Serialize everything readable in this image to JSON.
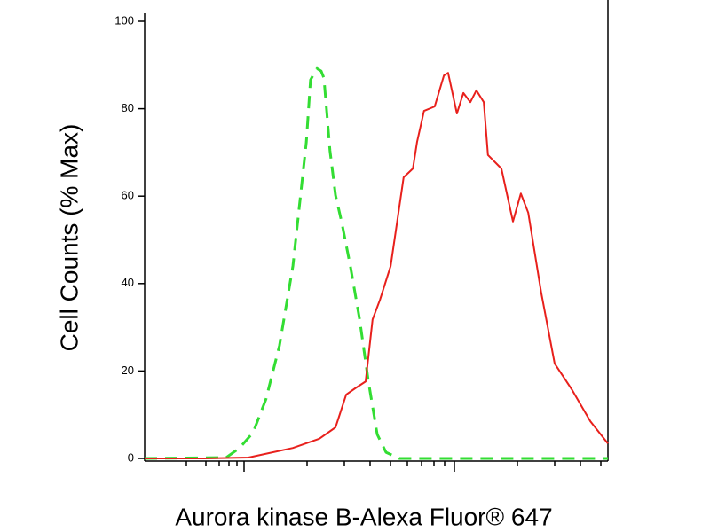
{
  "chart_data": {
    "type": "line",
    "xlabel": "Aurora kinase B-Alexa Fluor® 647",
    "ylabel": "Cell Counts (% Max)",
    "xlim": [
      0,
      100
    ],
    "ylim": [
      0,
      100
    ],
    "yticks": [
      0,
      20,
      40,
      60,
      80,
      100
    ],
    "series": [
      {
        "color": "#33dd33",
        "dashed": true,
        "x": [
          0,
          17.6,
          20.5,
          23.4,
          26.2,
          29.1,
          32.0,
          34.9,
          35.8,
          37.2,
          38.1,
          38.7,
          40.0,
          41.2,
          42.5,
          44.4,
          46.4,
          48.3,
          50.2,
          52.1,
          55.0,
          100
        ],
        "values": [
          0,
          0.2,
          2.4,
          5.9,
          13.6,
          25.8,
          44.0,
          72.4,
          86.6,
          89.2,
          88.6,
          87.0,
          70.4,
          60.2,
          54.2,
          44.0,
          31.8,
          17.6,
          5.5,
          1.4,
          0,
          0
        ]
      },
      {
        "color": "#e8201c",
        "dashed": false,
        "x": [
          0,
          12.8,
          22.4,
          32.0,
          37.7,
          41.2,
          43.5,
          45.4,
          47.7,
          49.2,
          50.8,
          53.1,
          55.9,
          57.9,
          58.8,
          60.3,
          62.6,
          64.6,
          65.5,
          67.4,
          68.8,
          70.3,
          71.6,
          73.2,
          74.1,
          77.0,
          79.5,
          81.2,
          82.8,
          85.6,
          88.5,
          92.3,
          96.2,
          100
        ],
        "values": [
          0,
          0,
          0.2,
          2.4,
          4.5,
          7.1,
          14.6,
          16.0,
          17.6,
          31.8,
          36.3,
          44.0,
          64.3,
          66.3,
          72.4,
          79.5,
          80.5,
          87.6,
          88.2,
          78.9,
          83.6,
          81.5,
          84.2,
          81.5,
          69.4,
          66.3,
          54.2,
          60.6,
          56.2,
          37.9,
          21.7,
          15.6,
          8.5,
          3.4
        ]
      }
    ]
  }
}
